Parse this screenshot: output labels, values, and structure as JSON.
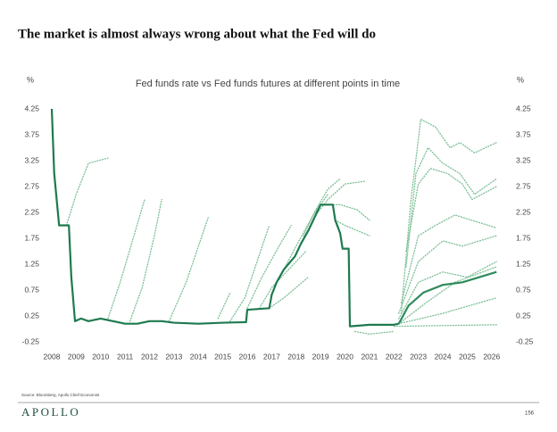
{
  "page": {
    "title": "The market is almost always wrong about what the Fed will do",
    "source": "Source: Bloomberg, Apollo Chief Economist",
    "brand": "APOLLO",
    "page_number": "156"
  },
  "chart_data": {
    "type": "line",
    "title": "Fed funds rate vs Fed funds futures at different points in time",
    "y_unit": "%",
    "xlim": [
      2008,
      2026.3
    ],
    "xticks": [
      2008,
      2009,
      2010,
      2011,
      2012,
      2013,
      2014,
      2015,
      2016,
      2017,
      2018,
      2019,
      2020,
      2021,
      2022,
      2023,
      2024,
      2025,
      2026
    ],
    "ylim": [
      -0.25,
      4.25
    ],
    "yticks": [
      -0.25,
      0.25,
      0.75,
      1.25,
      1.75,
      2.25,
      2.75,
      3.25,
      3.75,
      4.25
    ],
    "grid": false,
    "series": [
      {
        "color": "#7bbf95",
        "dashed": true,
        "x": [
          2008.6,
          2009,
          2009.5,
          2010.3
        ],
        "values": [
          2.0,
          2.6,
          3.2,
          3.3
        ]
      },
      {
        "color": "#7bbf95",
        "dashed": true,
        "x": [
          2010.3,
          2010.8,
          2011.3,
          2011.8
        ],
        "values": [
          0.2,
          0.9,
          1.7,
          2.5
        ]
      },
      {
        "color": "#7bbf95",
        "dashed": true,
        "x": [
          2011.2,
          2011.7,
          2012.2,
          2012.5
        ],
        "values": [
          0.15,
          0.8,
          1.8,
          2.5
        ]
      },
      {
        "color": "#7bbf95",
        "dashed": true,
        "x": [
          2012.8,
          2013.5,
          2014.4
        ],
        "values": [
          0.15,
          0.9,
          2.15
        ]
      },
      {
        "color": "#7bbf95",
        "dashed": true,
        "x": [
          2014.8,
          2015.3
        ],
        "values": [
          0.2,
          0.7
        ]
      },
      {
        "color": "#7bbf95",
        "dashed": true,
        "x": [
          2015.3,
          2015.9,
          2016.4,
          2016.9
        ],
        "values": [
          0.15,
          0.6,
          1.3,
          2.0
        ]
      },
      {
        "color": "#7bbf95",
        "dashed": true,
        "x": [
          2016,
          2016.6,
          2017.3,
          2017.8
        ],
        "values": [
          0.4,
          1.0,
          1.6,
          2.0
        ]
      },
      {
        "color": "#7bbf95",
        "dashed": true,
        "x": [
          2016.5,
          2017,
          2017.8,
          2018.4
        ],
        "values": [
          0.4,
          0.8,
          1.2,
          1.5
        ]
      },
      {
        "color": "#7bbf95",
        "dashed": true,
        "x": [
          2016.9,
          2017.5,
          2018,
          2018.5
        ],
        "values": [
          0.4,
          0.6,
          0.8,
          1.0
        ]
      },
      {
        "color": "#7bbf95",
        "dashed": true,
        "x": [
          2017.5,
          2018,
          2018.7,
          2019.3
        ],
        "values": [
          1.15,
          1.6,
          2.2,
          2.6
        ]
      },
      {
        "color": "#7bbf95",
        "dashed": true,
        "x": [
          2018.3,
          2018.8,
          2019.3,
          2019.8
        ],
        "values": [
          1.8,
          2.3,
          2.7,
          2.9
        ]
      },
      {
        "color": "#7bbf95",
        "dashed": true,
        "x": [
          2018.8,
          2019.3,
          2020,
          2020.8
        ],
        "values": [
          2.2,
          2.5,
          2.8,
          2.85
        ]
      },
      {
        "color": "#7bbf95",
        "dashed": true,
        "x": [
          2019.2,
          2019.8,
          2020.5,
          2021
        ],
        "values": [
          2.4,
          2.4,
          2.3,
          2.1
        ]
      },
      {
        "color": "#7bbf95",
        "dashed": true,
        "x": [
          2019.6,
          2020,
          2020.5,
          2021
        ],
        "values": [
          2.1,
          2.0,
          1.9,
          1.8
        ]
      },
      {
        "color": "#7bbf95",
        "dashed": true,
        "x": [
          2020.4,
          2021,
          2022
        ],
        "values": [
          -0.05,
          -0.1,
          -0.05
        ]
      },
      {
        "color": "#7bbf95",
        "dashed": true,
        "x": [
          2022.3,
          2022.7,
          2023.1,
          2023.7,
          2024.3,
          2024.7,
          2025.3,
          2026.2
        ],
        "values": [
          0.3,
          2.5,
          4.05,
          3.9,
          3.5,
          3.6,
          3.4,
          3.6
        ]
      },
      {
        "color": "#7bbf95",
        "dashed": true,
        "x": [
          2022.5,
          2022.9,
          2023.4,
          2024,
          2024.7,
          2025.3,
          2026.2
        ],
        "values": [
          1.2,
          3.0,
          3.5,
          3.2,
          3.0,
          2.6,
          2.9
        ]
      },
      {
        "color": "#7bbf95",
        "dashed": true,
        "x": [
          2022.5,
          2023,
          2023.5,
          2024.2,
          2024.8,
          2025.2,
          2026.2
        ],
        "values": [
          1.5,
          2.8,
          3.1,
          3.0,
          2.8,
          2.5,
          2.75
        ]
      },
      {
        "color": "#7bbf95",
        "dashed": true,
        "x": [
          2022.3,
          2023,
          2023.7,
          2024.5,
          2026.2
        ],
        "values": [
          0.5,
          1.8,
          2.0,
          2.2,
          1.95
        ]
      },
      {
        "color": "#7bbf95",
        "dashed": true,
        "x": [
          2022.2,
          2023,
          2024,
          2024.8,
          2026.2
        ],
        "values": [
          0.3,
          1.3,
          1.7,
          1.6,
          1.8
        ]
      },
      {
        "color": "#7bbf95",
        "dashed": true,
        "x": [
          2022.2,
          2023,
          2024,
          2025,
          2026.2
        ],
        "values": [
          0.2,
          0.9,
          1.1,
          1.0,
          1.3
        ]
      },
      {
        "color": "#7bbf95",
        "dashed": true,
        "x": [
          2022.2,
          2023.3,
          2024.5,
          2026.2
        ],
        "values": [
          0.1,
          0.5,
          0.9,
          1.2
        ]
      },
      {
        "color": "#7bbf95",
        "dashed": true,
        "x": [
          2022.2,
          2024,
          2026.2
        ],
        "values": [
          0.1,
          0.3,
          0.6
        ]
      },
      {
        "color": "#7bbf95",
        "dashed": true,
        "x": [
          2022,
          2026.2
        ],
        "values": [
          0.05,
          0.08
        ]
      },
      {
        "color": "#2e8a5c",
        "dashed": false,
        "x": [
          2022.2,
          2022.6,
          2023.2,
          2024,
          2024.8,
          2026.2
        ],
        "values": [
          0.1,
          0.45,
          0.7,
          0.85,
          0.9,
          1.1
        ]
      },
      {
        "color": "#1e7a4f",
        "dashed": false,
        "x": [
          2008,
          2008.1,
          2008.3,
          2008.7,
          2008.8,
          2008.95,
          2009.2,
          2009.5,
          2010,
          2010.5,
          2011,
          2011.5,
          2012,
          2012.5,
          2013,
          2014,
          2015,
          2015.95,
          2016,
          2016.9,
          2017,
          2017.2,
          2017.5,
          2017.95,
          2018.2,
          2018.5,
          2018.8,
          2019,
          2019.5,
          2019.6,
          2019.8,
          2019.9,
          2020.15,
          2020.2,
          2021,
          2022,
          2022.2
        ],
        "values": [
          4.25,
          3.0,
          2.0,
          2.0,
          1.0,
          0.15,
          0.2,
          0.15,
          0.2,
          0.15,
          0.1,
          0.1,
          0.15,
          0.15,
          0.12,
          0.1,
          0.12,
          0.13,
          0.37,
          0.4,
          0.66,
          0.9,
          1.15,
          1.4,
          1.65,
          1.9,
          2.2,
          2.4,
          2.4,
          2.1,
          1.85,
          1.55,
          1.55,
          0.05,
          0.08,
          0.08,
          0.1
        ]
      }
    ]
  }
}
